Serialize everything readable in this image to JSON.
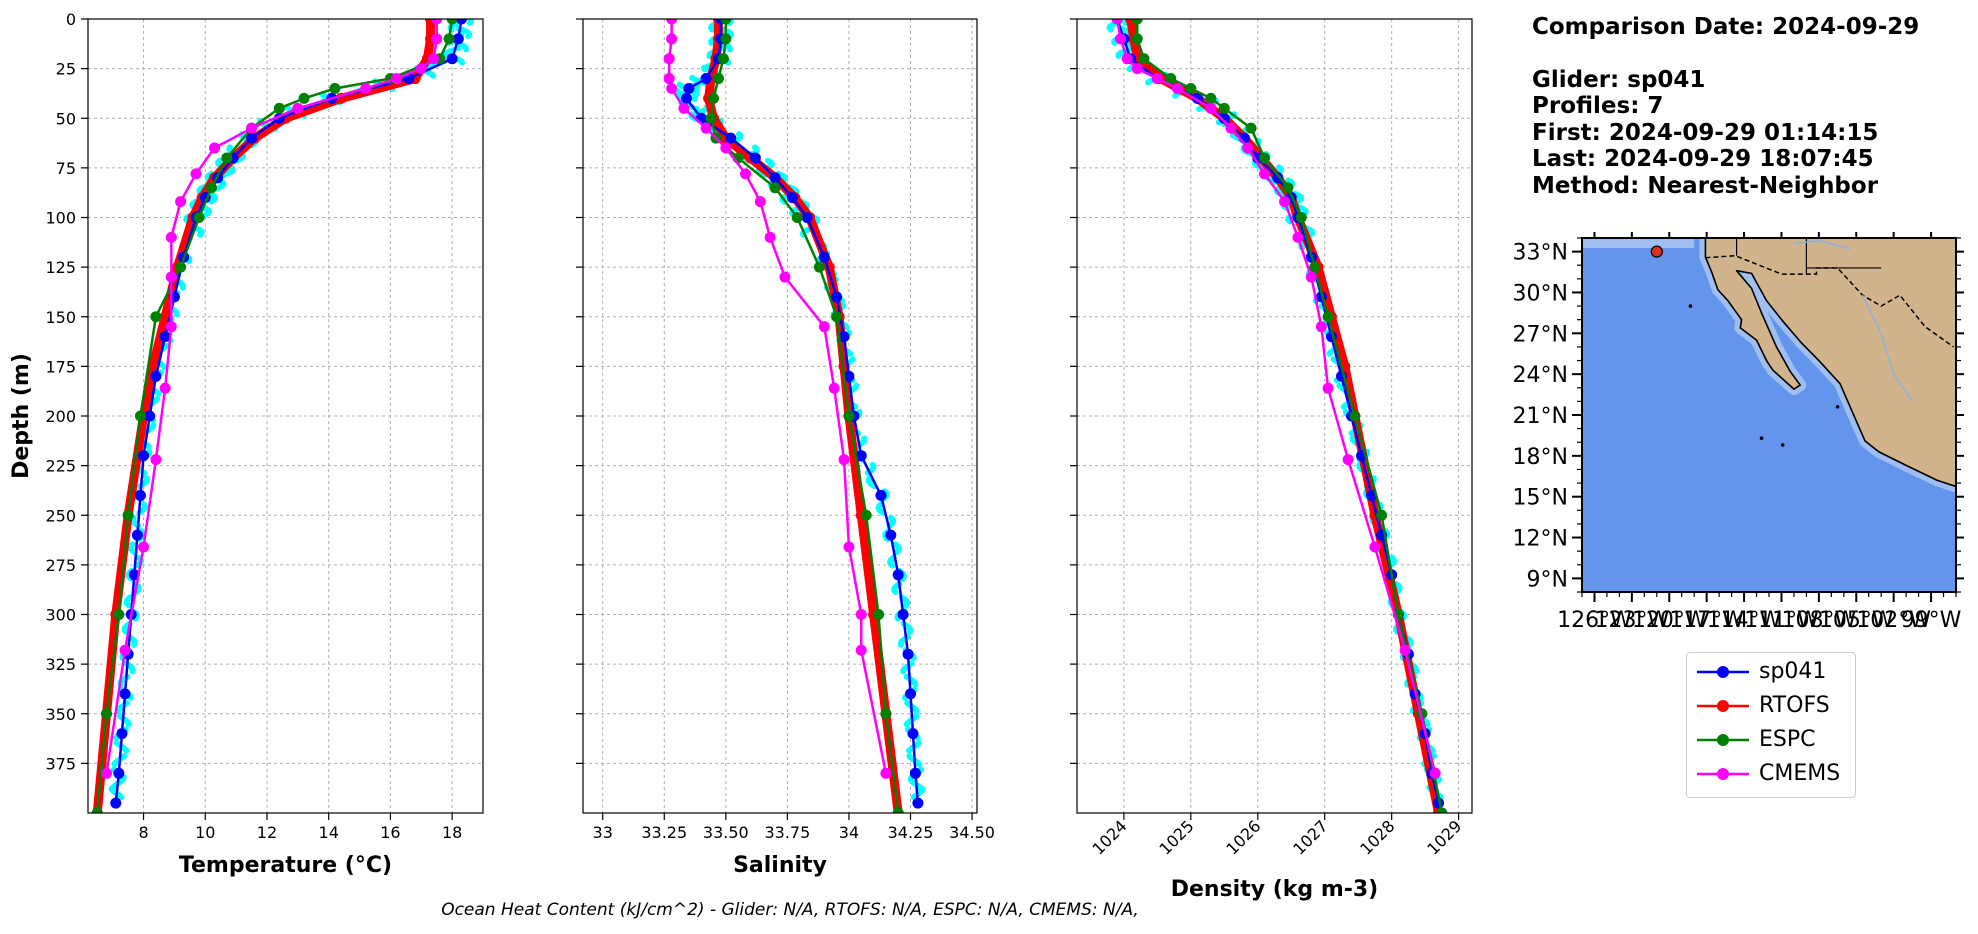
{
  "info": {
    "comparison": "Comparison Date: 2024-09-29",
    "glider": "Glider: sp041",
    "profiles": "Profiles: 7",
    "first": "First: 2024-09-29 01:14:15",
    "last": "Last: 2024-09-29 18:07:45",
    "method": "Method: Nearest-Neighbor"
  },
  "footer": "Ocean Heat Content (kJ/cm^2) - Glider: N/A,  RTOFS: N/A,  ESPC: N/A,  CMEMS: N/A,",
  "legend": [
    {
      "name": "sp041",
      "color": "#0000ff"
    },
    {
      "name": "RTOFS",
      "color": "#ff0000"
    },
    {
      "name": "ESPC",
      "color": "#008000"
    },
    {
      "name": "CMEMS",
      "color": "#ff00ff"
    }
  ],
  "colors": {
    "glider_raw": "#00ffff",
    "ocean": "#6495ed",
    "land": "#d2b48c",
    "shelf": "#a0bff0"
  },
  "chart_data": [
    {
      "type": "line",
      "xlabel": "Temperature (°C)",
      "ylabel": "Depth (m)",
      "xlim": [
        6.2,
        19.0
      ],
      "ylim": [
        400,
        0
      ],
      "xticks": [
        8,
        10,
        12,
        14,
        16,
        18
      ],
      "yticks": [
        0,
        25,
        50,
        75,
        100,
        125,
        150,
        175,
        200,
        225,
        250,
        275,
        300,
        325,
        350,
        375
      ],
      "grid": true,
      "series": [
        {
          "name": "sp041",
          "depth": [
            0,
            10,
            20,
            30,
            40,
            50,
            60,
            70,
            80,
            90,
            100,
            120,
            140,
            160,
            180,
            200,
            220,
            240,
            260,
            280,
            300,
            320,
            340,
            360,
            380,
            395
          ],
          "values": [
            18.3,
            18.2,
            18.0,
            16.6,
            14.1,
            12.4,
            11.5,
            10.9,
            10.4,
            10.0,
            9.7,
            9.3,
            9.0,
            8.7,
            8.4,
            8.2,
            8.0,
            7.9,
            7.8,
            7.7,
            7.6,
            7.5,
            7.4,
            7.3,
            7.2,
            7.1
          ]
        },
        {
          "name": "RTOFS",
          "depth": [
            0,
            10,
            20,
            30,
            40,
            50,
            60,
            70,
            80,
            90,
            100,
            125,
            150,
            175,
            200,
            250,
            300,
            350,
            400
          ],
          "values": [
            17.3,
            17.3,
            17.2,
            16.8,
            14.4,
            12.6,
            11.6,
            10.9,
            10.3,
            9.9,
            9.6,
            9.1,
            8.7,
            8.3,
            8.0,
            7.5,
            7.1,
            6.8,
            6.5
          ]
        },
        {
          "name": "ESPC",
          "depth": [
            0,
            10,
            20,
            30,
            35,
            40,
            45,
            55,
            70,
            85,
            100,
            125,
            150,
            200,
            250,
            300,
            350,
            400
          ],
          "values": [
            18.0,
            17.9,
            17.6,
            16.0,
            14.2,
            13.2,
            12.4,
            11.5,
            10.7,
            10.2,
            9.8,
            9.2,
            8.4,
            7.9,
            7.5,
            7.2,
            6.8,
            6.5
          ]
        },
        {
          "name": "CMEMS",
          "depth": [
            0,
            10,
            20,
            25,
            30,
            35,
            45,
            55,
            65,
            78,
            92,
            110,
            130,
            155,
            186,
            222,
            266,
            318,
            380
          ],
          "values": [
            17.5,
            17.5,
            17.4,
            17.0,
            16.2,
            15.2,
            13.0,
            11.5,
            10.3,
            9.7,
            9.2,
            8.9,
            8.9,
            8.9,
            8.7,
            8.4,
            8.0,
            7.4,
            6.8
          ]
        }
      ]
    },
    {
      "type": "line",
      "xlabel": "Salinity",
      "xlim": [
        32.92,
        34.52
      ],
      "ylim": [
        400,
        0
      ],
      "xticks": [
        33.0,
        33.25,
        33.5,
        33.75,
        34.0,
        34.25,
        34.5
      ],
      "grid": true,
      "series": [
        {
          "name": "sp041",
          "depth": [
            0,
            10,
            20,
            30,
            35,
            40,
            50,
            60,
            70,
            80,
            90,
            100,
            120,
            140,
            160,
            180,
            200,
            220,
            240,
            260,
            280,
            300,
            320,
            340,
            360,
            380,
            395
          ],
          "values": [
            33.48,
            33.48,
            33.47,
            33.42,
            33.35,
            33.34,
            33.4,
            33.52,
            33.62,
            33.7,
            33.77,
            33.83,
            33.9,
            33.95,
            33.98,
            34.0,
            34.02,
            34.05,
            34.13,
            34.17,
            34.2,
            34.22,
            34.24,
            34.25,
            34.26,
            34.27,
            34.28
          ]
        },
        {
          "name": "RTOFS",
          "depth": [
            0,
            10,
            20,
            30,
            40,
            50,
            60,
            70,
            80,
            90,
            100,
            125,
            150,
            175,
            200,
            250,
            300,
            350,
            400
          ],
          "values": [
            33.47,
            33.47,
            33.46,
            33.44,
            33.43,
            33.45,
            33.5,
            33.6,
            33.7,
            33.78,
            33.84,
            33.92,
            33.96,
            33.98,
            34.0,
            34.05,
            34.1,
            34.15,
            34.2
          ]
        },
        {
          "name": "ESPC",
          "depth": [
            0,
            10,
            20,
            30,
            40,
            50,
            60,
            70,
            85,
            100,
            125,
            150,
            200,
            250,
            300,
            350,
            400
          ],
          "values": [
            33.5,
            33.5,
            33.49,
            33.47,
            33.45,
            33.44,
            33.46,
            33.55,
            33.7,
            33.79,
            33.88,
            33.95,
            34.0,
            34.07,
            34.12,
            34.15,
            34.2
          ]
        },
        {
          "name": "CMEMS",
          "depth": [
            0,
            10,
            20,
            30,
            35,
            45,
            55,
            65,
            78,
            92,
            110,
            130,
            155,
            186,
            222,
            266,
            300,
            318,
            380
          ],
          "values": [
            33.28,
            33.28,
            33.27,
            33.27,
            33.28,
            33.33,
            33.42,
            33.5,
            33.58,
            33.64,
            33.68,
            33.74,
            33.9,
            33.94,
            33.98,
            34.0,
            34.05,
            34.05,
            34.15
          ]
        }
      ]
    },
    {
      "type": "line",
      "xlabel": "Density (kg m-3)",
      "xlim": [
        1023.3,
        1029.2
      ],
      "ylim": [
        400,
        0
      ],
      "xticks": [
        1024,
        1025,
        1026,
        1027,
        1028,
        1029
      ],
      "grid": true,
      "series": [
        {
          "name": "sp041",
          "depth": [
            0,
            10,
            20,
            30,
            40,
            50,
            60,
            70,
            80,
            90,
            100,
            120,
            140,
            160,
            180,
            200,
            220,
            240,
            260,
            280,
            300,
            320,
            340,
            360,
            380,
            395
          ],
          "values": [
            1023.9,
            1024.0,
            1024.1,
            1024.5,
            1025.1,
            1025.5,
            1025.8,
            1026.0,
            1026.3,
            1026.5,
            1026.6,
            1026.8,
            1026.95,
            1027.1,
            1027.25,
            1027.4,
            1027.55,
            1027.7,
            1027.85,
            1028.0,
            1028.1,
            1028.25,
            1028.35,
            1028.5,
            1028.6,
            1028.7
          ]
        },
        {
          "name": "RTOFS",
          "depth": [
            0,
            10,
            20,
            30,
            40,
            50,
            60,
            70,
            80,
            90,
            100,
            125,
            150,
            175,
            200,
            250,
            300,
            350,
            400
          ],
          "values": [
            1024.1,
            1024.15,
            1024.2,
            1024.55,
            1025.1,
            1025.5,
            1025.8,
            1026.05,
            1026.3,
            1026.5,
            1026.6,
            1026.9,
            1027.1,
            1027.3,
            1027.45,
            1027.75,
            1028.1,
            1028.4,
            1028.7
          ]
        },
        {
          "name": "ESPC",
          "depth": [
            0,
            10,
            20,
            30,
            35,
            40,
            45,
            55,
            70,
            85,
            100,
            125,
            150,
            200,
            250,
            300,
            350,
            400
          ],
          "values": [
            1024.2,
            1024.2,
            1024.3,
            1024.7,
            1025.0,
            1025.3,
            1025.5,
            1025.9,
            1026.1,
            1026.45,
            1026.65,
            1026.85,
            1027.05,
            1027.45,
            1027.85,
            1028.1,
            1028.45,
            1028.75
          ]
        },
        {
          "name": "CMEMS",
          "depth": [
            0,
            10,
            20,
            25,
            30,
            35,
            45,
            55,
            65,
            78,
            92,
            110,
            130,
            155,
            186,
            222,
            266,
            318,
            380
          ],
          "values": [
            1023.9,
            1023.95,
            1024.05,
            1024.2,
            1024.5,
            1024.8,
            1025.3,
            1025.6,
            1025.85,
            1026.1,
            1026.4,
            1026.6,
            1026.8,
            1026.95,
            1027.05,
            1027.35,
            1027.75,
            1028.2,
            1028.65
          ]
        }
      ]
    },
    {
      "type": "map",
      "lon_ticks": [
        "126°W",
        "123°W",
        "120°W",
        "117°W",
        "114°W",
        "111°W",
        "108°W",
        "105°W",
        "102°W",
        "99°W"
      ],
      "lat_ticks": [
        "9°N",
        "12°N",
        "15°N",
        "18°N",
        "21°N",
        "24°N",
        "27°N",
        "30°N",
        "33°N"
      ],
      "lon_range": [
        -127.0,
        -97.0
      ],
      "lat_range": [
        8.0,
        34.0
      ],
      "glider_position": {
        "lon": -121.0,
        "lat": 33.0
      }
    }
  ]
}
